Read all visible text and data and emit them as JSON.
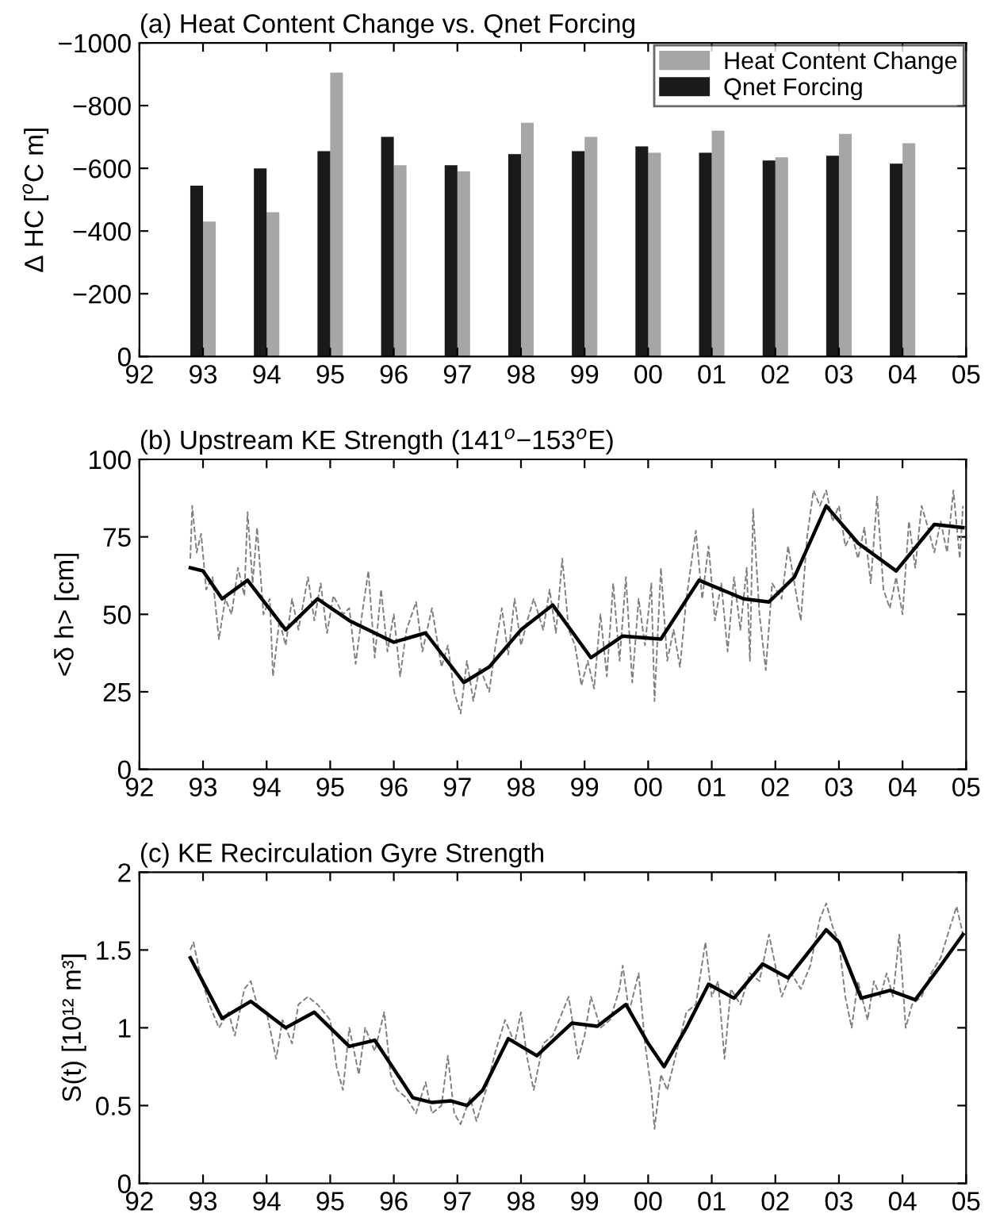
{
  "chart_data": [
    {
      "type": "bar",
      "title": "(a) Heat Content Change vs. Qnet Forcing",
      "ylabel": "Δ HC [$^{o}$C m]",
      "x": [
        1993,
        1994,
        1995,
        1996,
        1997,
        1998,
        1999,
        2000,
        2001,
        2002,
        2003,
        2004
      ],
      "series": [
        {
          "name": "Heat Content Change",
          "color": "#a6a6a6",
          "values": [
            -430,
            -460,
            -905,
            -610,
            -590,
            -745,
            -700,
            -650,
            -720,
            -635,
            -710,
            -680
          ]
        },
        {
          "name": "Qnet Forcing",
          "color": "#1a1a1a",
          "values": [
            -545,
            -600,
            -655,
            -700,
            -610,
            -645,
            -655,
            -670,
            -650,
            -625,
            -640,
            -615
          ]
        }
      ],
      "xlim": [
        1992,
        2005
      ],
      "xticks": [
        {
          "value": 1992,
          "label": "92"
        },
        {
          "value": 1993,
          "label": "93"
        },
        {
          "value": 1994,
          "label": "94"
        },
        {
          "value": 1995,
          "label": "95"
        },
        {
          "value": 1996,
          "label": "96"
        },
        {
          "value": 1997,
          "label": "97"
        },
        {
          "value": 1998,
          "label": "98"
        },
        {
          "value": 1999,
          "label": "99"
        },
        {
          "value": 2000,
          "label": "00"
        },
        {
          "value": 2001,
          "label": "01"
        },
        {
          "value": 2002,
          "label": "02"
        },
        {
          "value": 2003,
          "label": "03"
        },
        {
          "value": 2004,
          "label": "04"
        },
        {
          "value": 2005,
          "label": "05"
        }
      ],
      "ylim": [
        0,
        -1000
      ],
      "yticks": [
        {
          "value": -1000,
          "label": "−1000"
        },
        {
          "value": -800,
          "label": "−800"
        },
        {
          "value": -600,
          "label": "−600"
        },
        {
          "value": -400,
          "label": "−400"
        },
        {
          "value": -200,
          "label": "−200"
        },
        0
      ],
      "legend": "top right",
      "grid": false
    },
    {
      "type": "line",
      "title": "(b) Upstream KE Strength (141$^{o}$−153$^{o}$E)",
      "ylabel": "<δ h> [cm]",
      "series": [
        {
          "color": "#7f7f7f",
          "line_style": "dashed",
          "x": [
            1992.8,
            1992.83,
            1992.9,
            1992.97,
            1993.05,
            1993.15,
            1993.25,
            1993.35,
            1993.45,
            1993.55,
            1993.65,
            1993.7,
            1993.78,
            1993.85,
            1993.95,
            1994.05,
            1994.1,
            1994.2,
            1994.3,
            1994.4,
            1994.5,
            1994.65,
            1994.75,
            1994.85,
            1994.95,
            1995.05,
            1995.2,
            1995.3,
            1995.4,
            1995.5,
            1995.6,
            1995.7,
            1995.8,
            1995.9,
            1996.0,
            1996.1,
            1996.2,
            1996.35,
            1996.45,
            1996.6,
            1996.75,
            1996.85,
            1996.95,
            1997.05,
            1997.15,
            1997.25,
            1997.35,
            1997.5,
            1997.6,
            1997.7,
            1997.8,
            1997.9,
            1998.0,
            1998.1,
            1998.2,
            1998.35,
            1998.45,
            1998.55,
            1998.65,
            1998.75,
            1998.85,
            1998.95,
            1999.05,
            1999.15,
            1999.25,
            1999.35,
            1999.45,
            1999.55,
            1999.65,
            1999.75,
            1999.85,
            1999.95,
            2000.05,
            2000.1,
            2000.2,
            2000.3,
            2000.4,
            2000.5,
            2000.6,
            2000.75,
            2000.85,
            2000.95,
            2001.05,
            2001.15,
            2001.25,
            2001.35,
            2001.45,
            2001.55,
            2001.6,
            2001.65,
            2001.75,
            2001.85,
            2001.95,
            2002.1,
            2002.2,
            2002.3,
            2002.4,
            2002.5,
            2002.6,
            2002.7,
            2002.8,
            2002.9,
            2003.0,
            2003.1,
            2003.2,
            2003.3,
            2003.4,
            2003.5,
            2003.6,
            2003.7,
            2003.8,
            2003.9,
            2004.0,
            2004.1,
            2004.2,
            2004.3,
            2004.4,
            2004.5,
            2004.6,
            2004.7,
            2004.8,
            2004.9,
            2004.95
          ],
          "values": [
            68,
            85,
            70,
            76,
            58,
            62,
            42,
            55,
            50,
            65,
            56,
            83,
            60,
            78,
            50,
            55,
            30,
            48,
            40,
            55,
            45,
            62,
            48,
            60,
            44,
            56,
            50,
            52,
            34,
            50,
            64,
            36,
            58,
            38,
            50,
            30,
            45,
            54,
            38,
            52,
            33,
            40,
            25,
            18,
            35,
            22,
            33,
            25,
            40,
            52,
            37,
            55,
            40,
            48,
            55,
            45,
            58,
            44,
            68,
            45,
            40,
            27,
            35,
            26,
            50,
            30,
            60,
            35,
            62,
            28,
            55,
            40,
            60,
            22,
            65,
            35,
            45,
            33,
            55,
            77,
            55,
            72,
            48,
            60,
            38,
            62,
            45,
            65,
            35,
            84,
            50,
            32,
            60,
            55,
            72,
            60,
            48,
            75,
            90,
            85,
            90,
            80,
            85,
            72,
            76,
            68,
            78,
            60,
            88,
            58,
            52,
            62,
            50,
            80,
            65,
            85,
            78,
            70,
            80,
            70,
            90,
            68,
            85
          ]
        },
        {
          "color": "#000000",
          "line_style": "solid",
          "x": [
            1992.8,
            1993.0,
            1993.3,
            1993.7,
            1994.0,
            1994.3,
            1994.8,
            1995.3,
            1996.0,
            1996.5,
            1997.1,
            1997.5,
            1998.0,
            1998.5,
            1999.1,
            1999.6,
            2000.2,
            2000.8,
            2001.5,
            2001.9,
            2002.3,
            2002.8,
            2003.3,
            2003.9,
            2004.5,
            2004.95
          ],
          "values": [
            65,
            64,
            55,
            61,
            53,
            45,
            55,
            48,
            41,
            44,
            28,
            33,
            45,
            53,
            36,
            43,
            42,
            61,
            55,
            54,
            62,
            85,
            73,
            64,
            79,
            78
          ]
        }
      ],
      "xlim": [
        1992,
        2005
      ],
      "xticks": [
        {
          "value": 1992,
          "label": "92"
        },
        {
          "value": 1993,
          "label": "93"
        },
        {
          "value": 1994,
          "label": "94"
        },
        {
          "value": 1995,
          "label": "95"
        },
        {
          "value": 1996,
          "label": "96"
        },
        {
          "value": 1997,
          "label": "97"
        },
        {
          "value": 1998,
          "label": "98"
        },
        {
          "value": 1999,
          "label": "99"
        },
        {
          "value": 2000,
          "label": "00"
        },
        {
          "value": 2001,
          "label": "01"
        },
        {
          "value": 2002,
          "label": "02"
        },
        {
          "value": 2003,
          "label": "03"
        },
        {
          "value": 2004,
          "label": "04"
        },
        {
          "value": 2005,
          "label": "05"
        }
      ],
      "ylim": [
        0,
        100
      ],
      "yticks": [
        0,
        25,
        50,
        75,
        100
      ],
      "grid": false,
      "legend": false
    },
    {
      "type": "line",
      "title": "(c) KE Recirculation Gyre Strength",
      "ylabel": "S(t) [10¹² m³]",
      "series": [
        {
          "color": "#7f7f7f",
          "line_style": "dashed",
          "x": [
            1992.8,
            1992.85,
            1992.95,
            1993.1,
            1993.25,
            1993.4,
            1993.5,
            1993.65,
            1993.75,
            1993.85,
            1994.0,
            1994.15,
            1994.25,
            1994.4,
            1994.5,
            1994.65,
            1994.8,
            1995.0,
            1995.1,
            1995.2,
            1995.3,
            1995.45,
            1995.55,
            1995.7,
            1995.85,
            1995.95,
            1996.05,
            1996.2,
            1996.35,
            1996.5,
            1996.6,
            1996.75,
            1996.85,
            1996.95,
            1997.05,
            1997.2,
            1997.3,
            1997.45,
            1997.6,
            1997.75,
            1997.9,
            1998.0,
            1998.1,
            1998.2,
            1998.35,
            1998.5,
            1998.6,
            1998.75,
            1998.9,
            1999.0,
            1999.1,
            1999.25,
            1999.4,
            1999.55,
            1999.6,
            1999.7,
            1999.85,
            1999.95,
            2000.05,
            2000.1,
            2000.2,
            2000.3,
            2000.45,
            2000.6,
            2000.75,
            2000.9,
            2001.0,
            2001.1,
            2001.2,
            2001.3,
            2001.45,
            2001.6,
            2001.75,
            2001.9,
            2002.0,
            2002.1,
            2002.25,
            2002.4,
            2002.55,
            2002.7,
            2002.8,
            2002.9,
            2003.0,
            2003.1,
            2003.2,
            2003.3,
            2003.45,
            2003.55,
            2003.65,
            2003.75,
            2003.85,
            2003.95,
            2004.05,
            2004.15,
            2004.3,
            2004.45,
            2004.6,
            2004.75,
            2004.85,
            2004.95
          ],
          "values": [
            1.5,
            1.55,
            1.35,
            1.15,
            1.0,
            1.1,
            0.95,
            1.25,
            1.3,
            1.15,
            1.1,
            0.8,
            1.05,
            0.9,
            1.15,
            1.2,
            1.15,
            1.05,
            0.75,
            0.6,
            1.0,
            0.7,
            1.0,
            0.85,
            1.1,
            0.7,
            0.6,
            0.55,
            0.45,
            0.65,
            0.45,
            0.5,
            0.82,
            0.45,
            0.38,
            0.55,
            0.4,
            0.6,
            0.85,
            1.05,
            0.9,
            1.1,
            0.8,
            0.6,
            0.9,
            0.95,
            1.05,
            1.2,
            0.8,
            0.95,
            1.2,
            1.0,
            1.05,
            1.25,
            1.4,
            1.1,
            1.35,
            0.9,
            0.6,
            0.35,
            0.7,
            0.6,
            0.85,
            1.1,
            1.15,
            1.55,
            1.2,
            1.3,
            0.8,
            1.25,
            1.15,
            1.35,
            1.3,
            1.6,
            1.4,
            1.2,
            1.35,
            1.25,
            1.4,
            1.7,
            1.8,
            1.65,
            1.55,
            1.2,
            1.0,
            1.3,
            1.05,
            1.3,
            1.2,
            1.35,
            1.2,
            1.6,
            1.0,
            1.15,
            1.2,
            1.35,
            1.45,
            1.65,
            1.78,
            1.6
          ]
        },
        {
          "color": "#000000",
          "line_style": "solid",
          "x": [
            1992.8,
            1993.3,
            1993.75,
            1994.3,
            1994.75,
            1995.3,
            1995.7,
            1996.3,
            1996.6,
            1996.9,
            1997.15,
            1997.4,
            1997.8,
            1998.25,
            1998.8,
            1999.2,
            1999.65,
            2000.0,
            2000.25,
            2000.6,
            2000.95,
            2001.35,
            2001.8,
            2002.2,
            2002.8,
            2003.0,
            2003.35,
            2003.8,
            2004.2,
            2004.6,
            2004.95
          ],
          "values": [
            1.45,
            1.06,
            1.17,
            1.0,
            1.1,
            0.88,
            0.92,
            0.55,
            0.52,
            0.53,
            0.5,
            0.6,
            0.93,
            0.82,
            1.03,
            1.01,
            1.15,
            0.9,
            0.75,
            1.0,
            1.28,
            1.19,
            1.41,
            1.32,
            1.63,
            1.55,
            1.19,
            1.24,
            1.18,
            1.4,
            1.6
          ]
        }
      ],
      "xlim": [
        1992,
        2005
      ],
      "xticks": [
        {
          "value": 1992,
          "label": "92"
        },
        {
          "value": 1993,
          "label": "93"
        },
        {
          "value": 1994,
          "label": "94"
        },
        {
          "value": 1995,
          "label": "95"
        },
        {
          "value": 1996,
          "label": "96"
        },
        {
          "value": 1997,
          "label": "97"
        },
        {
          "value": 1998,
          "label": "98"
        },
        {
          "value": 1999,
          "label": "99"
        },
        {
          "value": 2000,
          "label": "00"
        },
        {
          "value": 2001,
          "label": "01"
        },
        {
          "value": 2002,
          "label": "02"
        },
        {
          "value": 2003,
          "label": "03"
        },
        {
          "value": 2004,
          "label": "04"
        },
        {
          "value": 2005,
          "label": "05"
        }
      ],
      "ylim": [
        0,
        2
      ],
      "yticks": [
        0,
        0.5,
        1,
        1.5,
        2
      ],
      "grid": false,
      "legend": false
    }
  ]
}
